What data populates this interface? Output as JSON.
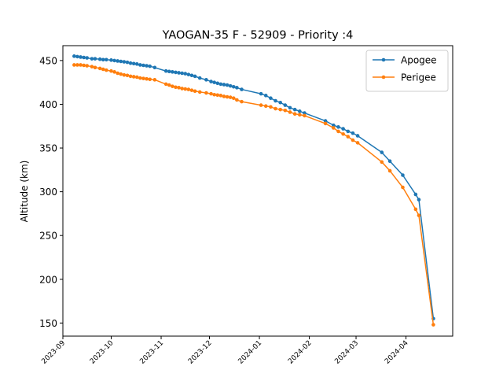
{
  "chart_data": {
    "type": "line",
    "title": "YAOGAN-35 F - 52909 - Priority :4",
    "xlabel": "",
    "ylabel": "Altitude (km)",
    "x_type": "date",
    "xlim": [
      "2023-09-01",
      "2024-04-30"
    ],
    "ylim": [
      135,
      467
    ],
    "x_ticks": [
      "2023-09",
      "2023-10",
      "2023-11",
      "2023-12",
      "2024-01",
      "2024-02",
      "2024-03",
      "2024-04"
    ],
    "x_tick_dates": [
      "2023-09-01",
      "2023-10-01",
      "2023-11-01",
      "2023-12-01",
      "2024-01-01",
      "2024-02-01",
      "2024-03-01",
      "2024-04-01"
    ],
    "y_ticks": [
      150,
      200,
      250,
      300,
      350,
      400,
      450
    ],
    "grid": false,
    "legend_position": "top-right",
    "series": [
      {
        "name": "Apogee",
        "color": "#1f77b4",
        "points": [
          [
            "2023-09-08",
            455
          ],
          [
            "2023-09-10",
            454.5
          ],
          [
            "2023-09-12",
            454
          ],
          [
            "2023-09-14",
            453.5
          ],
          [
            "2023-09-16",
            453
          ],
          [
            "2023-09-19",
            452
          ],
          [
            "2023-09-21",
            452
          ],
          [
            "2023-09-24",
            451.5
          ],
          [
            "2023-09-26",
            451
          ],
          [
            "2023-09-28",
            451
          ],
          [
            "2023-10-01",
            450.5
          ],
          [
            "2023-10-03",
            450
          ],
          [
            "2023-10-05",
            449.5
          ],
          [
            "2023-10-07",
            449
          ],
          [
            "2023-10-09",
            448.5
          ],
          [
            "2023-10-11",
            448
          ],
          [
            "2023-10-13",
            447
          ],
          [
            "2023-10-15",
            446.5
          ],
          [
            "2023-10-17",
            446
          ],
          [
            "2023-10-19",
            445
          ],
          [
            "2023-10-21",
            444.5
          ],
          [
            "2023-10-23",
            444
          ],
          [
            "2023-10-25",
            443.5
          ],
          [
            "2023-10-28",
            442
          ],
          [
            "2023-11-04",
            438
          ],
          [
            "2023-11-06",
            437.5
          ],
          [
            "2023-11-08",
            437
          ],
          [
            "2023-11-10",
            436.5
          ],
          [
            "2023-11-12",
            436
          ],
          [
            "2023-11-14",
            435.5
          ],
          [
            "2023-11-16",
            435
          ],
          [
            "2023-11-18",
            434
          ],
          [
            "2023-11-20",
            433
          ],
          [
            "2023-11-22",
            432
          ],
          [
            "2023-11-25",
            430
          ],
          [
            "2023-11-29",
            428
          ],
          [
            "2023-12-02",
            426
          ],
          [
            "2023-12-04",
            425
          ],
          [
            "2023-12-06",
            424
          ],
          [
            "2023-12-08",
            423
          ],
          [
            "2023-12-10",
            422.5
          ],
          [
            "2023-12-12",
            422
          ],
          [
            "2023-12-14",
            421
          ],
          [
            "2023-12-16",
            420
          ],
          [
            "2023-12-18",
            419
          ],
          [
            "2023-12-21",
            417
          ],
          [
            "2024-01-02",
            412
          ],
          [
            "2024-01-05",
            410
          ],
          [
            "2024-01-08",
            407
          ],
          [
            "2024-01-11",
            404
          ],
          [
            "2024-01-14",
            402
          ],
          [
            "2024-01-17",
            399
          ],
          [
            "2024-01-20",
            396
          ],
          [
            "2024-01-23",
            394
          ],
          [
            "2024-01-26",
            392
          ],
          [
            "2024-01-29",
            390
          ],
          [
            "2024-02-11",
            381
          ],
          [
            "2024-02-16",
            376
          ],
          [
            "2024-02-19",
            374
          ],
          [
            "2024-02-22",
            372
          ],
          [
            "2024-02-25",
            369
          ],
          [
            "2024-02-28",
            367
          ],
          [
            "2024-03-02",
            364
          ],
          [
            "2024-03-17",
            345
          ],
          [
            "2024-03-22",
            335
          ],
          [
            "2024-03-30",
            319
          ],
          [
            "2024-04-07",
            297
          ],
          [
            "2024-04-09",
            291
          ],
          [
            "2024-04-18",
            155
          ]
        ]
      },
      {
        "name": "Perigee",
        "color": "#ff7f0e",
        "points": [
          [
            "2023-09-08",
            445
          ],
          [
            "2023-09-10",
            445
          ],
          [
            "2023-09-12",
            445
          ],
          [
            "2023-09-14",
            444.5
          ],
          [
            "2023-09-16",
            444
          ],
          [
            "2023-09-19",
            443
          ],
          [
            "2023-09-21",
            442
          ],
          [
            "2023-09-24",
            441
          ],
          [
            "2023-09-26",
            440
          ],
          [
            "2023-09-28",
            439
          ],
          [
            "2023-10-01",
            438
          ],
          [
            "2023-10-03",
            437
          ],
          [
            "2023-10-05",
            435.5
          ],
          [
            "2023-10-07",
            434.5
          ],
          [
            "2023-10-09",
            433.5
          ],
          [
            "2023-10-11",
            433
          ],
          [
            "2023-10-13",
            432
          ],
          [
            "2023-10-15",
            431.5
          ],
          [
            "2023-10-17",
            431
          ],
          [
            "2023-10-19",
            430
          ],
          [
            "2023-10-21",
            429.5
          ],
          [
            "2023-10-23",
            429
          ],
          [
            "2023-10-25",
            428.5
          ],
          [
            "2023-10-28",
            428
          ],
          [
            "2023-11-04",
            423
          ],
          [
            "2023-11-06",
            422
          ],
          [
            "2023-11-08",
            420.5
          ],
          [
            "2023-11-10",
            419.5
          ],
          [
            "2023-11-12",
            419
          ],
          [
            "2023-11-14",
            418
          ],
          [
            "2023-11-16",
            417.5
          ],
          [
            "2023-11-18",
            417
          ],
          [
            "2023-11-20",
            416
          ],
          [
            "2023-11-22",
            415
          ],
          [
            "2023-11-25",
            414
          ],
          [
            "2023-11-29",
            413
          ],
          [
            "2023-12-02",
            412
          ],
          [
            "2023-12-04",
            411
          ],
          [
            "2023-12-06",
            410.5
          ],
          [
            "2023-12-08",
            410
          ],
          [
            "2023-12-10",
            409
          ],
          [
            "2023-12-12",
            408.5
          ],
          [
            "2023-12-14",
            408
          ],
          [
            "2023-12-16",
            407
          ],
          [
            "2023-12-18",
            405
          ],
          [
            "2023-12-21",
            403
          ],
          [
            "2024-01-02",
            399
          ],
          [
            "2024-01-05",
            398
          ],
          [
            "2024-01-08",
            397
          ],
          [
            "2024-01-11",
            395
          ],
          [
            "2024-01-14",
            394
          ],
          [
            "2024-01-17",
            393
          ],
          [
            "2024-01-20",
            391
          ],
          [
            "2024-01-23",
            389
          ],
          [
            "2024-01-26",
            388
          ],
          [
            "2024-01-29",
            387
          ],
          [
            "2024-02-11",
            378
          ],
          [
            "2024-02-16",
            373
          ],
          [
            "2024-02-19",
            369
          ],
          [
            "2024-02-22",
            366
          ],
          [
            "2024-02-25",
            363
          ],
          [
            "2024-02-28",
            359
          ],
          [
            "2024-03-02",
            356
          ],
          [
            "2024-03-17",
            334
          ],
          [
            "2024-03-22",
            324
          ],
          [
            "2024-03-30",
            305
          ],
          [
            "2024-04-07",
            280
          ],
          [
            "2024-04-09",
            273
          ],
          [
            "2024-04-18",
            148
          ]
        ]
      }
    ]
  }
}
